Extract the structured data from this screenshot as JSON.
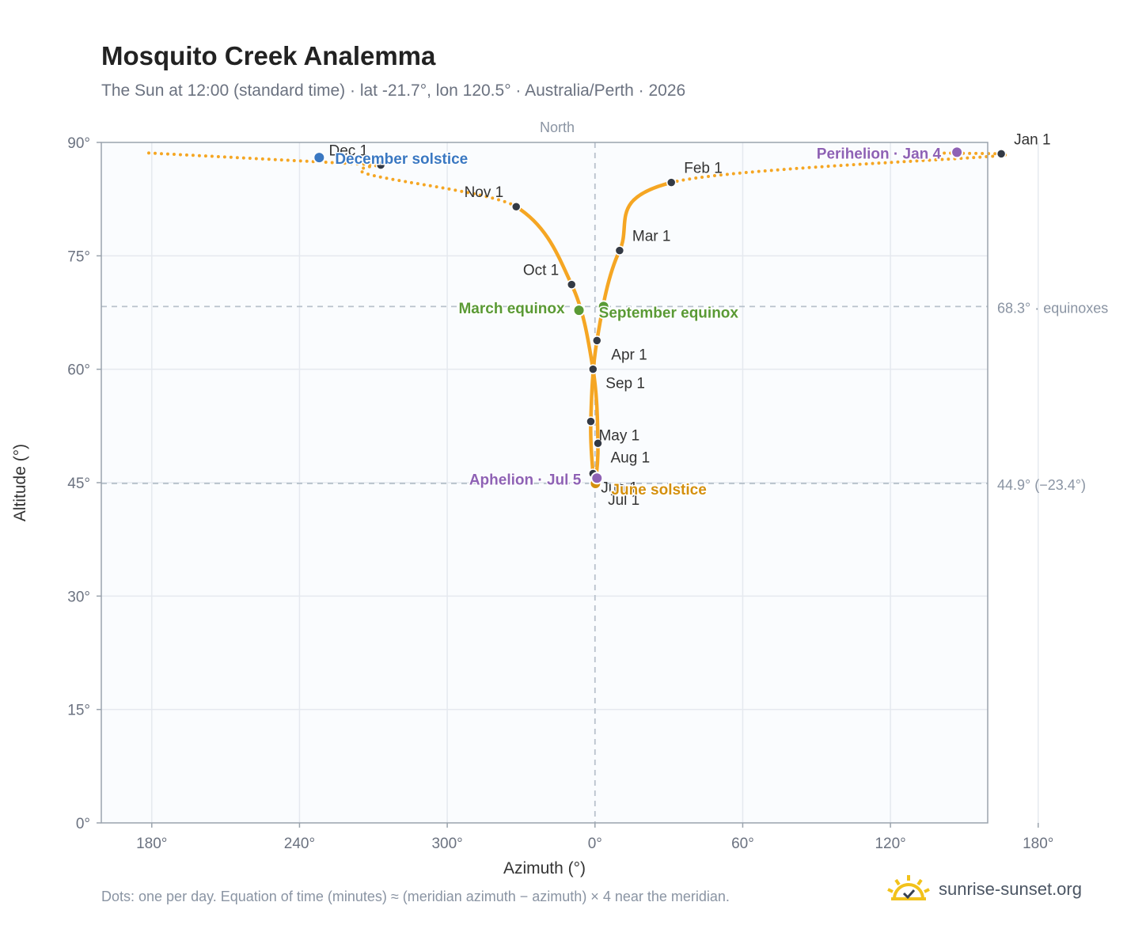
{
  "title": "Mosquito Creek Analemma",
  "subtitle": "The Sun at 12:00 (standard time) · lat -21.7°, lon 120.5° · Australia/Perth · 2026",
  "footnote": "Dots: one per day. Equation of time (minutes) ≈ (meridian azimuth − azimuth) × 4 near the meridian.",
  "brand": {
    "name": "sunrise-sunset.org",
    "icon": "sun-check-icon"
  },
  "chart_data": {
    "type": "scatter",
    "xlabel": "Azimuth (°)",
    "ylabel": "Altitude (°)",
    "meridian_label": "North",
    "x_axis": {
      "range_unwrapped": [
        159.5,
        519.5
      ],
      "ticks": [
        180,
        240,
        300,
        360,
        420,
        480,
        540
      ],
      "tick_labels": [
        "180°",
        "240°",
        "300°",
        "0°",
        "60°",
        "120°",
        "180°"
      ]
    },
    "y_axis": {
      "range": [
        0,
        90
      ],
      "ticks": [
        0,
        15,
        30,
        45,
        60,
        75,
        90
      ],
      "tick_labels": [
        "0°",
        "15°",
        "30°",
        "45°",
        "60°",
        "75°",
        "90°"
      ]
    },
    "grid": true,
    "reference_lines": [
      {
        "y": 68.3,
        "label": "68.3° · equinoxes"
      },
      {
        "y": 44.9,
        "label": "44.9° (−23.4°)"
      }
    ],
    "colors": {
      "curve": "#f5a623",
      "month_marker": "#333a45",
      "december": "#3a78c2",
      "june": "#d4900e",
      "equinox": "#5a9a35",
      "apsis": "#8e62b5",
      "plot_bg": "#fafcfe",
      "grid": "#e5e9ef",
      "axis": "#9aa3ad",
      "ref": "#b8c2cc"
    },
    "months": [
      {
        "label": "Jan 1",
        "az": 165.0,
        "alt": 88.5
      },
      {
        "label": "Feb 1",
        "az": 31.0,
        "alt": 84.7
      },
      {
        "label": "Mar 1",
        "az": 10.0,
        "alt": 75.7
      },
      {
        "label": "Apr 1",
        "az": 0.8,
        "alt": 63.8
      },
      {
        "label": "May 1",
        "az": 358.3,
        "alt": 53.1
      },
      {
        "label": "Jun 1",
        "az": 359.2,
        "alt": 46.2
      },
      {
        "label": "Jul 1",
        "az": 0.1,
        "alt": 45.0
      },
      {
        "label": "Aug 1",
        "az": 1.2,
        "alt": 50.2
      },
      {
        "label": "Sep 1",
        "az": 359.2,
        "alt": 60.0
      },
      {
        "label": "Oct 1",
        "az": 350.5,
        "alt": 71.2
      },
      {
        "label": "Nov 1",
        "az": 328.0,
        "alt": 81.5
      },
      {
        "label": "Dec 1",
        "az": 273.0,
        "alt": 87.0
      }
    ],
    "events": [
      {
        "label": "December solstice",
        "az": 248.0,
        "alt": 88.0,
        "kind": "december"
      },
      {
        "label": "June solstice",
        "az": 0.2,
        "alt": 44.9,
        "kind": "june"
      },
      {
        "label": "March equinox",
        "az": 353.5,
        "alt": 67.8,
        "kind": "equinox"
      },
      {
        "label": "September equinox",
        "az": 3.5,
        "alt": 68.3,
        "kind": "equinox"
      },
      {
        "label": "Perihelion · Jan 4",
        "az": 147.0,
        "alt": 88.7,
        "kind": "apsis"
      },
      {
        "label": "Aphelion · Jul 5",
        "az": 0.8,
        "alt": 45.6,
        "kind": "apsis"
      }
    ]
  }
}
